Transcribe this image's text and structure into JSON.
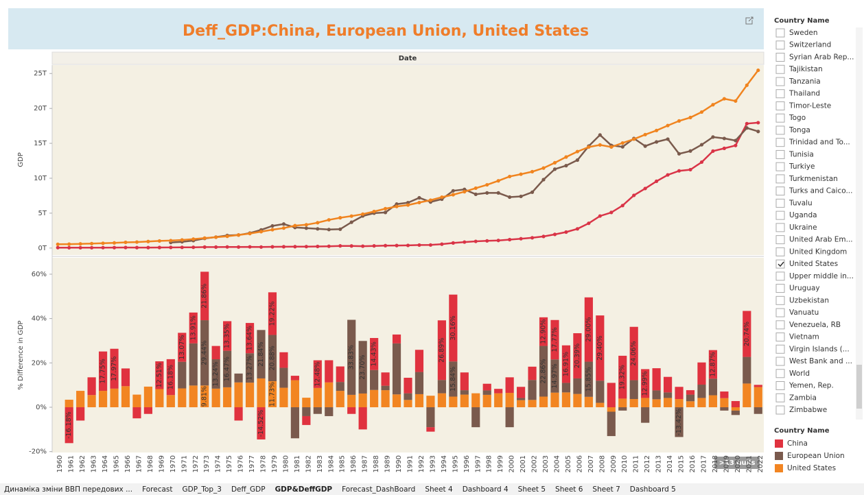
{
  "chart_data": [
    {
      "type": "line",
      "title": "Deff_GDP:China, European Union, United States",
      "header": "Date",
      "y_label": "GDP",
      "ylim": [
        -1,
        26.2
      ],
      "yticks": [
        {
          "value": 0,
          "label": "0T"
        },
        {
          "value": 5,
          "label": "5T"
        },
        {
          "value": 10,
          "label": "10T"
        },
        {
          "value": 15,
          "label": "15T"
        },
        {
          "value": 20,
          "label": "20T"
        },
        {
          "value": 25,
          "label": "25T"
        }
      ],
      "series": [
        {
          "name": "China",
          "color": "#d93447",
          "values": [
            0.06,
            0.05,
            0.05,
            0.05,
            0.06,
            0.07,
            0.08,
            0.07,
            0.07,
            0.08,
            0.09,
            0.1,
            0.11,
            0.14,
            0.14,
            0.16,
            0.15,
            0.17,
            0.15,
            0.18,
            0.19,
            0.2,
            0.21,
            0.23,
            0.26,
            0.31,
            0.3,
            0.27,
            0.31,
            0.35,
            0.36,
            0.38,
            0.43,
            0.44,
            0.56,
            0.73,
            0.86,
            0.96,
            1.03,
            1.09,
            1.21,
            1.34,
            1.47,
            1.66,
            1.96,
            2.29,
            2.75,
            3.55,
            4.59,
            5.1,
            6.09,
            7.55,
            8.53,
            9.57,
            10.48,
            11.06,
            11.23,
            12.31,
            13.89,
            14.28,
            14.69,
            17.82,
            17.96
          ]
        },
        {
          "name": "European Union",
          "color": "#7a5a4c",
          "values": [
            null,
            null,
            null,
            null,
            null,
            null,
            null,
            null,
            null,
            null,
            0.8,
            0.9,
            1.07,
            1.38,
            1.57,
            1.8,
            1.87,
            2.14,
            2.6,
            3.17,
            3.44,
            2.95,
            2.85,
            2.75,
            2.65,
            2.7,
            3.7,
            4.6,
            5.0,
            5.1,
            6.3,
            6.5,
            7.2,
            6.6,
            7.0,
            8.2,
            8.4,
            7.7,
            7.9,
            7.9,
            7.3,
            7.4,
            8.0,
            9.8,
            11.3,
            11.8,
            12.6,
            14.6,
            16.2,
            14.7,
            14.5,
            15.7,
            14.6,
            15.2,
            15.6,
            13.5,
            13.9,
            14.8,
            15.9,
            15.7,
            15.4,
            17.2,
            16.7
          ]
        },
        {
          "name": "United States",
          "color": "#f0841f",
          "values": [
            0.54,
            0.56,
            0.6,
            0.64,
            0.69,
            0.74,
            0.82,
            0.86,
            0.94,
            1.02,
            1.07,
            1.16,
            1.28,
            1.43,
            1.55,
            1.69,
            1.87,
            2.08,
            2.35,
            2.63,
            2.86,
            3.21,
            3.34,
            3.63,
            4.04,
            4.34,
            4.58,
            4.86,
            5.24,
            5.64,
            5.96,
            6.16,
            6.52,
            6.86,
            7.29,
            7.64,
            8.07,
            8.58,
            9.06,
            9.63,
            10.25,
            10.58,
            10.94,
            11.46,
            12.22,
            13.04,
            13.82,
            14.47,
            14.77,
            14.48,
            15.05,
            15.6,
            16.25,
            16.84,
            17.55,
            18.21,
            18.7,
            19.48,
            20.53,
            21.38,
            21.06,
            23.32,
            25.46
          ]
        }
      ]
    },
    {
      "type": "bar",
      "stacked": true,
      "y_label": "% Difference in GDP",
      "annotation": ">13 nulls",
      "categories": [
        "1960",
        "1961",
        "1962",
        "1963",
        "1964",
        "1965",
        "1966",
        "1967",
        "1968",
        "1969",
        "1970",
        "1971",
        "1972",
        "1973",
        "1974",
        "1975",
        "1976",
        "1977",
        "1978",
        "1979",
        "1980",
        "1981",
        "1982",
        "1983",
        "1984",
        "1985",
        "1986",
        "1987",
        "1988",
        "1989",
        "1990",
        "1991",
        "1992",
        "1993",
        "1994",
        "1995",
        "1996",
        "1997",
        "1998",
        "1999",
        "2000",
        "2001",
        "2002",
        "2003",
        "2004",
        "2005",
        "2006",
        "2007",
        "2008",
        "2009",
        "2010",
        "2011",
        "2012",
        "2013",
        "2014",
        "2015",
        "2016",
        "2017",
        "2018",
        "2019",
        "2020",
        "2021",
        "2022"
      ],
      "ylim": [
        -20.4,
        67.4
      ],
      "yticks": [
        {
          "value": -20,
          "label": "-20%"
        },
        {
          "value": 0,
          "label": "0%"
        },
        {
          "value": 20,
          "label": "20%"
        },
        {
          "value": 40,
          "label": "40%"
        },
        {
          "value": 60,
          "label": "60%"
        }
      ],
      "series": [
        {
          "name": "United States",
          "color": "#f28522",
          "values": [
            null,
            3.4,
            7.4,
            5.5,
            7.4,
            8.4,
            9.5,
            5.7,
            9.3,
            8.2,
            5.5,
            8.5,
            9.8,
            9.81,
            8.4,
            9.0,
            11.2,
            11.1,
            13.0,
            11.73,
            8.8,
            12.2,
            4.3,
            8.7,
            11.2,
            7.4,
            5.6,
            6.2,
            7.8,
            7.7,
            5.8,
            3.3,
            5.9,
            5.2,
            6.3,
            4.8,
            5.7,
            6.3,
            5.6,
            6.3,
            6.5,
            3.2,
            3.3,
            4.8,
            6.6,
            6.7,
            6.0,
            4.7,
            2.0,
            -2.0,
            3.9,
            3.7,
            4.2,
            3.6,
            4.2,
            3.7,
            2.7,
            4.2,
            5.4,
            4.1,
            -1.5,
            10.7,
            9.1
          ],
          "value_labels": [
            null,
            null,
            null,
            null,
            null,
            null,
            null,
            null,
            null,
            null,
            null,
            null,
            null,
            "9.81%",
            null,
            null,
            null,
            null,
            null,
            "11.73%",
            null,
            null,
            null,
            null,
            null,
            null,
            null,
            null,
            null,
            null,
            null,
            null,
            null,
            null,
            null,
            null,
            null,
            null,
            null,
            null,
            null,
            null,
            null,
            null,
            null,
            null,
            null,
            null,
            null,
            null,
            null,
            null,
            null,
            null,
            null,
            null,
            null,
            null,
            null,
            null,
            null,
            null,
            null
          ]
        },
        {
          "name": "European Union",
          "color": "#7a5a4d",
          "values": [
            null,
            null,
            null,
            null,
            null,
            null,
            null,
            null,
            null,
            null,
            null,
            12,
            19,
            29.44,
            13.24,
            16.47,
            4,
            13.27,
            21.84,
            20.88,
            9,
            -14,
            -4,
            -3,
            -4,
            4,
            33.83,
            23.7,
            9,
            2,
            23,
            3,
            10,
            -9,
            6,
            15.84,
            2,
            -9,
            2,
            0,
            -9,
            1,
            9,
            22.86,
            14.97,
            4.3,
            7,
            15.85,
            10,
            -11,
            -1.5,
            8.5,
            -7,
            4,
            2.5,
            -13.42,
            3,
            6,
            7.5,
            -1.5,
            -2,
            12,
            -3
          ],
          "value_labels": [
            null,
            null,
            null,
            null,
            null,
            null,
            null,
            null,
            null,
            null,
            null,
            null,
            null,
            "29.44%",
            "13.24%",
            "16.47%",
            null,
            "13.27%",
            "21.84%",
            "20.88%",
            null,
            null,
            null,
            null,
            null,
            null,
            "33.83%",
            "23.70%",
            null,
            null,
            null,
            null,
            null,
            null,
            null,
            "15.84%",
            null,
            null,
            null,
            null,
            null,
            null,
            null,
            "22.86%",
            "14.97%",
            null,
            null,
            "15.85%",
            null,
            null,
            null,
            null,
            null,
            null,
            null,
            "-13.42%",
            null,
            null,
            null,
            null,
            null,
            null,
            null
          ]
        },
        {
          "name": "China",
          "color": "#e0323f",
          "values": [
            null,
            -16.18,
            -6,
            8,
            17.75,
            17.97,
            8,
            -5,
            -3,
            12.51,
            16.18,
            13.07,
            13.91,
            21.86,
            6,
            13.35,
            -6,
            13.64,
            -14.52,
            19.22,
            7,
            2,
            -4,
            12.48,
            10,
            7,
            -3,
            -10,
            14.43,
            6,
            4,
            7,
            10,
            -2,
            26.89,
            30.16,
            8,
            0,
            3,
            2,
            7,
            5,
            6,
            12.9,
            17.77,
            16.91,
            20.39,
            29.0,
            29.4,
            11,
            19.32,
            24.06,
            12.99,
            10,
            7,
            5.5,
            2,
            10,
            12.87,
            3,
            2.8,
            20.74,
            1
          ],
          "value_labels": [
            null,
            "-16.18%",
            null,
            null,
            "17.75%",
            "17.97%",
            null,
            null,
            null,
            "12.51%",
            "16.18%",
            "13.07%",
            "13.91%",
            "21.86%",
            null,
            "13.35%",
            null,
            "13.64%",
            "-14.52%",
            "19.22%",
            null,
            null,
            null,
            "12.48%",
            null,
            null,
            null,
            null,
            "14.43%",
            null,
            null,
            null,
            null,
            null,
            "26.89%",
            "30.16%",
            null,
            null,
            null,
            null,
            null,
            null,
            null,
            "12.90%",
            "17.77%",
            "16.91%",
            "20.39%",
            "29.00%",
            "29.40%",
            null,
            "19.32%",
            "24.06%",
            "12.99%",
            null,
            null,
            null,
            null,
            null,
            "12.87%",
            null,
            null,
            "20.74%",
            null
          ]
        }
      ]
    }
  ],
  "filter": {
    "title": "Country Name",
    "items": [
      {
        "label": "Sweden",
        "checked": false
      },
      {
        "label": "Switzerland",
        "checked": false
      },
      {
        "label": "Syrian Arab Rep...",
        "checked": false
      },
      {
        "label": "Tajikistan",
        "checked": false
      },
      {
        "label": "Tanzania",
        "checked": false
      },
      {
        "label": "Thailand",
        "checked": false
      },
      {
        "label": "Timor-Leste",
        "checked": false
      },
      {
        "label": "Togo",
        "checked": false
      },
      {
        "label": "Tonga",
        "checked": false
      },
      {
        "label": "Trinidad and To...",
        "checked": false
      },
      {
        "label": "Tunisia",
        "checked": false
      },
      {
        "label": "Turkiye",
        "checked": false
      },
      {
        "label": "Turkmenistan",
        "checked": false
      },
      {
        "label": "Turks and Caico...",
        "checked": false
      },
      {
        "label": "Tuvalu",
        "checked": false
      },
      {
        "label": "Uganda",
        "checked": false
      },
      {
        "label": "Ukraine",
        "checked": false
      },
      {
        "label": "United Arab Em...",
        "checked": false
      },
      {
        "label": "United Kingdom",
        "checked": false
      },
      {
        "label": "United States",
        "checked": true
      },
      {
        "label": "Upper middle in...",
        "checked": false
      },
      {
        "label": "Uruguay",
        "checked": false
      },
      {
        "label": "Uzbekistan",
        "checked": false
      },
      {
        "label": "Vanuatu",
        "checked": false
      },
      {
        "label": "Venezuela, RB",
        "checked": false
      },
      {
        "label": "Vietnam",
        "checked": false
      },
      {
        "label": "Virgin Islands (...",
        "checked": false
      },
      {
        "label": "West Bank and ...",
        "checked": false
      },
      {
        "label": "World",
        "checked": false
      },
      {
        "label": "Yemen, Rep.",
        "checked": false
      },
      {
        "label": "Zambia",
        "checked": false
      },
      {
        "label": "Zimbabwe",
        "checked": false
      }
    ]
  },
  "legend": {
    "title": "Country Name"
  },
  "tabs": {
    "active": 4,
    "items": [
      "Динаміка зміни ВВП передових ...",
      "Forecast",
      "GDP_Top_3",
      "Deff_GDP",
      "GDP&DeffGDP",
      "Forecast_DashBoard",
      "Sheet 4",
      "Dashboard 4",
      "Sheet 5",
      "Sheet 6",
      "Sheet 7",
      "Dashboard 5"
    ]
  }
}
